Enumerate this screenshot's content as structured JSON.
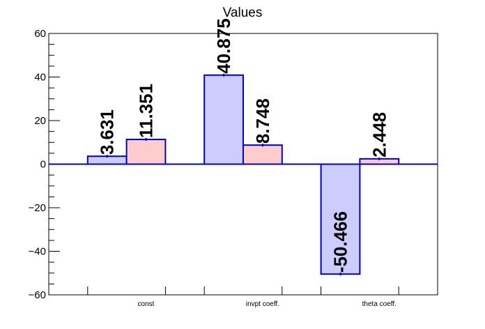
{
  "chart_data": {
    "type": "bar",
    "title": "Values",
    "xlabel": "",
    "ylabel": "",
    "categories": [
      "const",
      "invpt coeff.",
      "theta coeff."
    ],
    "series": [
      {
        "values": [
          3.631,
          40.875,
          -50.466
        ],
        "labels": [
          "3.631",
          "40.875",
          "-50.466"
        ],
        "fill": "#ccccff",
        "stroke": "#0000cc"
      },
      {
        "values": [
          11.351,
          8.748,
          2.448
        ],
        "labels": [
          "11.351",
          "8.748",
          "2.448"
        ],
        "fill": "#ffcccc",
        "stroke": "#0000cc"
      }
    ],
    "ylim": [
      -60,
      60
    ],
    "yticks": [
      -60,
      -40,
      -20,
      0,
      20,
      40,
      60
    ],
    "ytick_labels": [
      "−60",
      "−40",
      "−20",
      "0",
      "20",
      "40",
      "60"
    ],
    "grid": false,
    "legend": "none"
  }
}
